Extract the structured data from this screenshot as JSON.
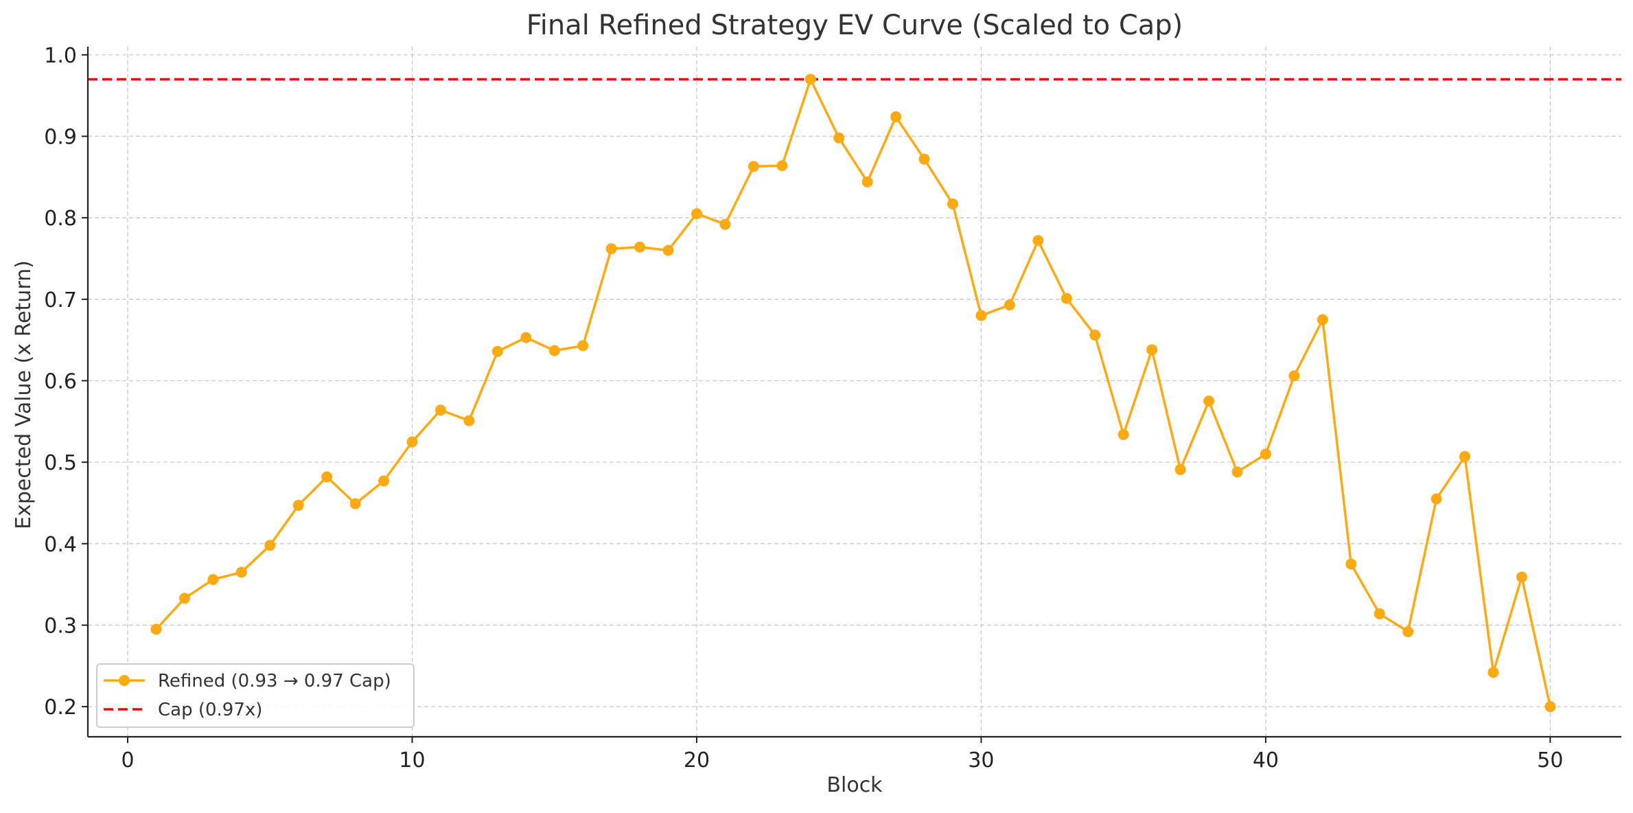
{
  "chart_data": {
    "type": "line",
    "title": "Final Refined Strategy EV Curve (Scaled to Cap)",
    "xlabel": "Block",
    "ylabel": "Expected Value (x Return)",
    "xlim": [
      -1.4,
      52.5
    ],
    "ylim": [
      0.163,
      1.01
    ],
    "xticks": [
      0,
      10,
      20,
      30,
      40,
      50
    ],
    "yticks": [
      0.2,
      0.3,
      0.4,
      0.5,
      0.6,
      0.7,
      0.8,
      0.9,
      1.0
    ],
    "grid": true,
    "legend_position": "lower-left",
    "series": [
      {
        "name": "Refined (0.93 → 0.97 Cap)",
        "color": "#FBAA14",
        "marker": "circle",
        "x": [
          1,
          2,
          3,
          4,
          5,
          6,
          7,
          8,
          9,
          10,
          11,
          12,
          13,
          14,
          15,
          16,
          17,
          18,
          19,
          20,
          21,
          22,
          23,
          24,
          25,
          26,
          27,
          28,
          29,
          30,
          31,
          32,
          33,
          34,
          35,
          36,
          37,
          38,
          39,
          40,
          41,
          42,
          43,
          44,
          45,
          46,
          47,
          48,
          49,
          50
        ],
        "y": [
          0.295,
          0.333,
          0.356,
          0.365,
          0.398,
          0.447,
          0.482,
          0.449,
          0.477,
          0.525,
          0.564,
          0.551,
          0.636,
          0.653,
          0.637,
          0.643,
          0.762,
          0.764,
          0.76,
          0.805,
          0.792,
          0.863,
          0.864,
          0.97,
          0.898,
          0.844,
          0.924,
          0.872,
          0.817,
          0.68,
          0.693,
          0.772,
          0.701,
          0.656,
          0.534,
          0.638,
          0.491,
          0.575,
          0.488,
          0.51,
          0.606,
          0.675,
          0.375,
          0.314,
          0.292,
          0.455,
          0.507,
          0.242,
          0.359,
          0.2
        ]
      }
    ],
    "reference_lines": [
      {
        "name": "Cap (0.97x)",
        "y": 0.97,
        "color": "#FF0000",
        "style": "dashed"
      }
    ]
  }
}
